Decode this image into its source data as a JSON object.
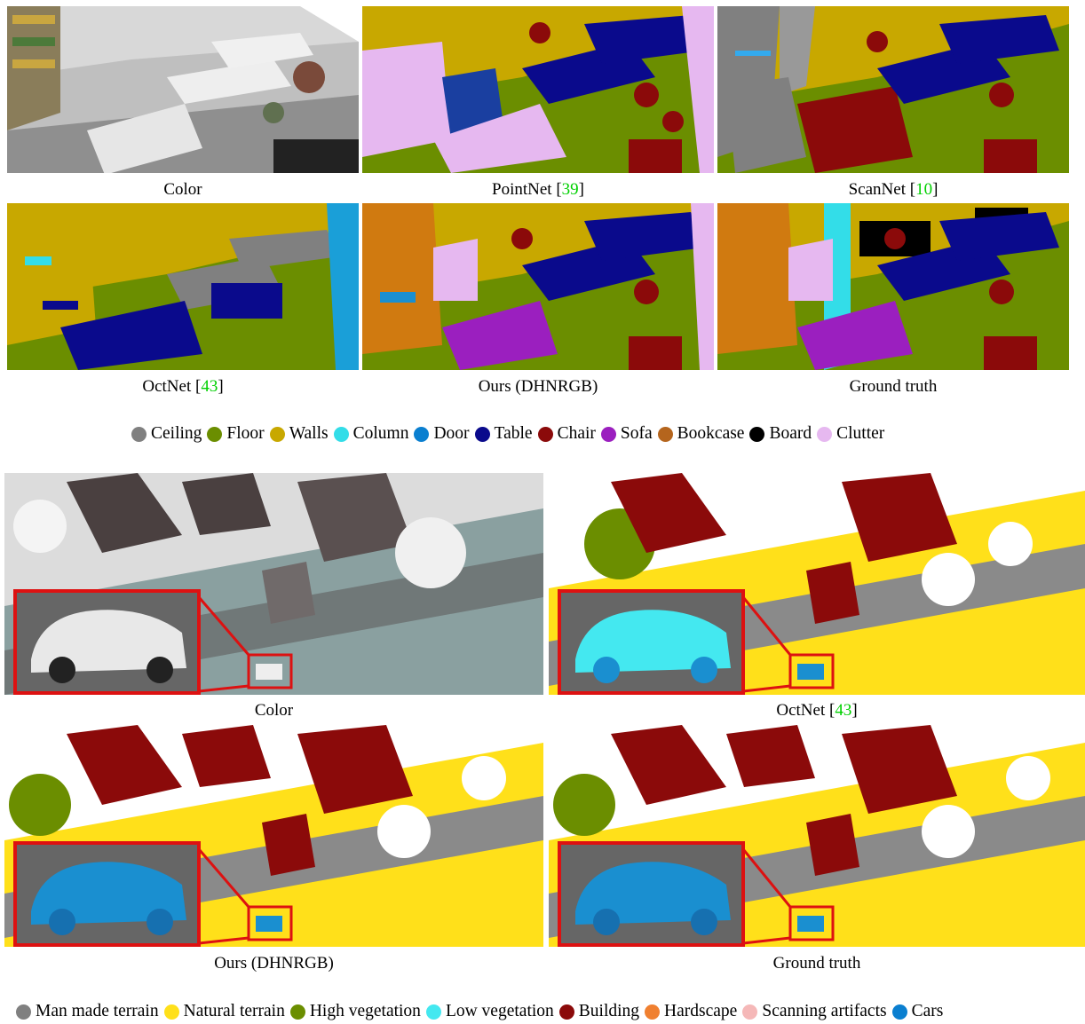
{
  "top_figure": {
    "captions": {
      "color": "Color",
      "pointnet": "PointNet [",
      "pointnet_ref": "39",
      "scannet": "ScanNet [",
      "scannet_ref": "10",
      "octnet": "OctNet [",
      "octnet_ref": "43",
      "ours": "Ours (DHNRGB)",
      "ground_truth": "Ground truth",
      "close_bracket": "]"
    },
    "legend": [
      {
        "label": "Ceiling",
        "color": "#808080"
      },
      {
        "label": "Floor",
        "color": "#6b8e00"
      },
      {
        "label": "Walls",
        "color": "#c8a800"
      },
      {
        "label": "Column",
        "color": "#33dde8"
      },
      {
        "label": "Door",
        "color": "#0a7fd0"
      },
      {
        "label": "Table",
        "color": "#0a0a8c"
      },
      {
        "label": "Chair",
        "color": "#8b0a0a"
      },
      {
        "label": "Sofa",
        "color": "#9b1fbf"
      },
      {
        "label": "Bookcase",
        "color": "#b5651d"
      },
      {
        "label": "Board",
        "color": "#000000"
      },
      {
        "label": "Clutter",
        "color": "#e6b8f0"
      }
    ]
  },
  "bottom_figure": {
    "captions": {
      "color": "Color",
      "octnet": "OctNet [",
      "octnet_ref": "43",
      "ours": "Ours (DHNRGB)",
      "ground_truth": "Ground truth",
      "close_bracket": "]"
    },
    "legend": [
      {
        "label": "Man made terrain",
        "color": "#808080"
      },
      {
        "label": "Natural terrain",
        "color": "#ffe01a"
      },
      {
        "label": "High vegetation",
        "color": "#6b8e00"
      },
      {
        "label": "Low vegetation",
        "color": "#44e8f0"
      },
      {
        "label": "Building",
        "color": "#8b0a0a"
      },
      {
        "label": "Hardscape",
        "color": "#f08030"
      },
      {
        "label": "Scanning artifacts",
        "color": "#f5b8b8"
      },
      {
        "label": "Cars",
        "color": "#0a7fd0"
      }
    ]
  }
}
